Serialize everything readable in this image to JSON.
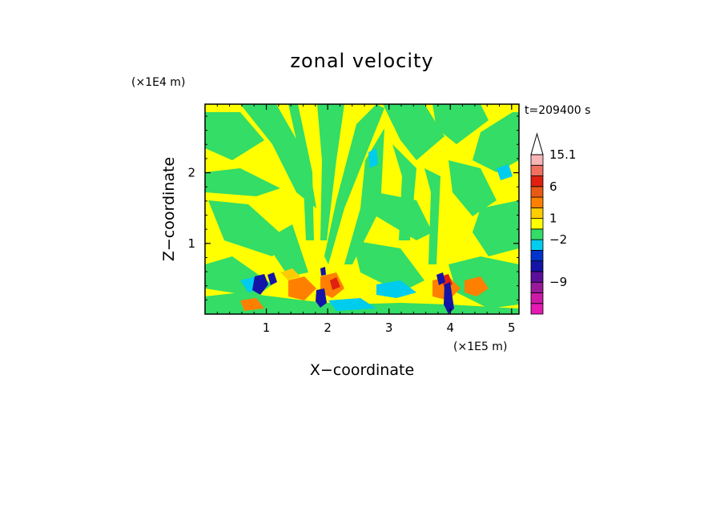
{
  "chart_data": {
    "type": "heatmap",
    "title": "zonal velocity",
    "xlabel": "X−coordinate",
    "ylabel": "Z−coordinate",
    "x_scale_note": "(×1E5 m)",
    "y_scale_note": "(×1E4 m)",
    "time_label": "t=209400 s",
    "xlim": [
      0,
      5.12
    ],
    "ylim": [
      0,
      2.97
    ],
    "x_ticks": [
      {
        "value": 1,
        "label": "1"
      },
      {
        "value": 2,
        "label": "2"
      },
      {
        "value": 3,
        "label": "3"
      },
      {
        "value": 4,
        "label": "4"
      },
      {
        "value": 5,
        "label": "5"
      }
    ],
    "y_ticks": [
      {
        "value": 1,
        "label": "1"
      },
      {
        "value": 2,
        "label": "2"
      }
    ],
    "colorbar": {
      "levels_bottom_to_top": [
        {
          "color": "#e619b3",
          "label": ""
        },
        {
          "color": "#cc1aa6",
          "label": ""
        },
        {
          "color": "#991a99",
          "label": "−9"
        },
        {
          "color": "#5c0f99",
          "label": ""
        },
        {
          "color": "#1414a6",
          "label": ""
        },
        {
          "color": "#0033cc",
          "label": ""
        },
        {
          "color": "#00ccee",
          "label": "−2"
        },
        {
          "color": "#33dd66",
          "label": ""
        },
        {
          "color": "#ffff00",
          "label": "1"
        },
        {
          "color": "#ffcc00",
          "label": ""
        },
        {
          "color": "#ff8000",
          "label": ""
        },
        {
          "color": "#e85a14",
          "label": "6"
        },
        {
          "color": "#e02010",
          "label": ""
        },
        {
          "color": "#f07060",
          "label": ""
        },
        {
          "color": "#f7b5b5",
          "label": "15.1"
        }
      ],
      "max_arrow_color": "#ffffff"
    },
    "field_description_regions": {
      "background_level": "#ffff00",
      "dominant_secondary": "#33dd66"
    }
  }
}
